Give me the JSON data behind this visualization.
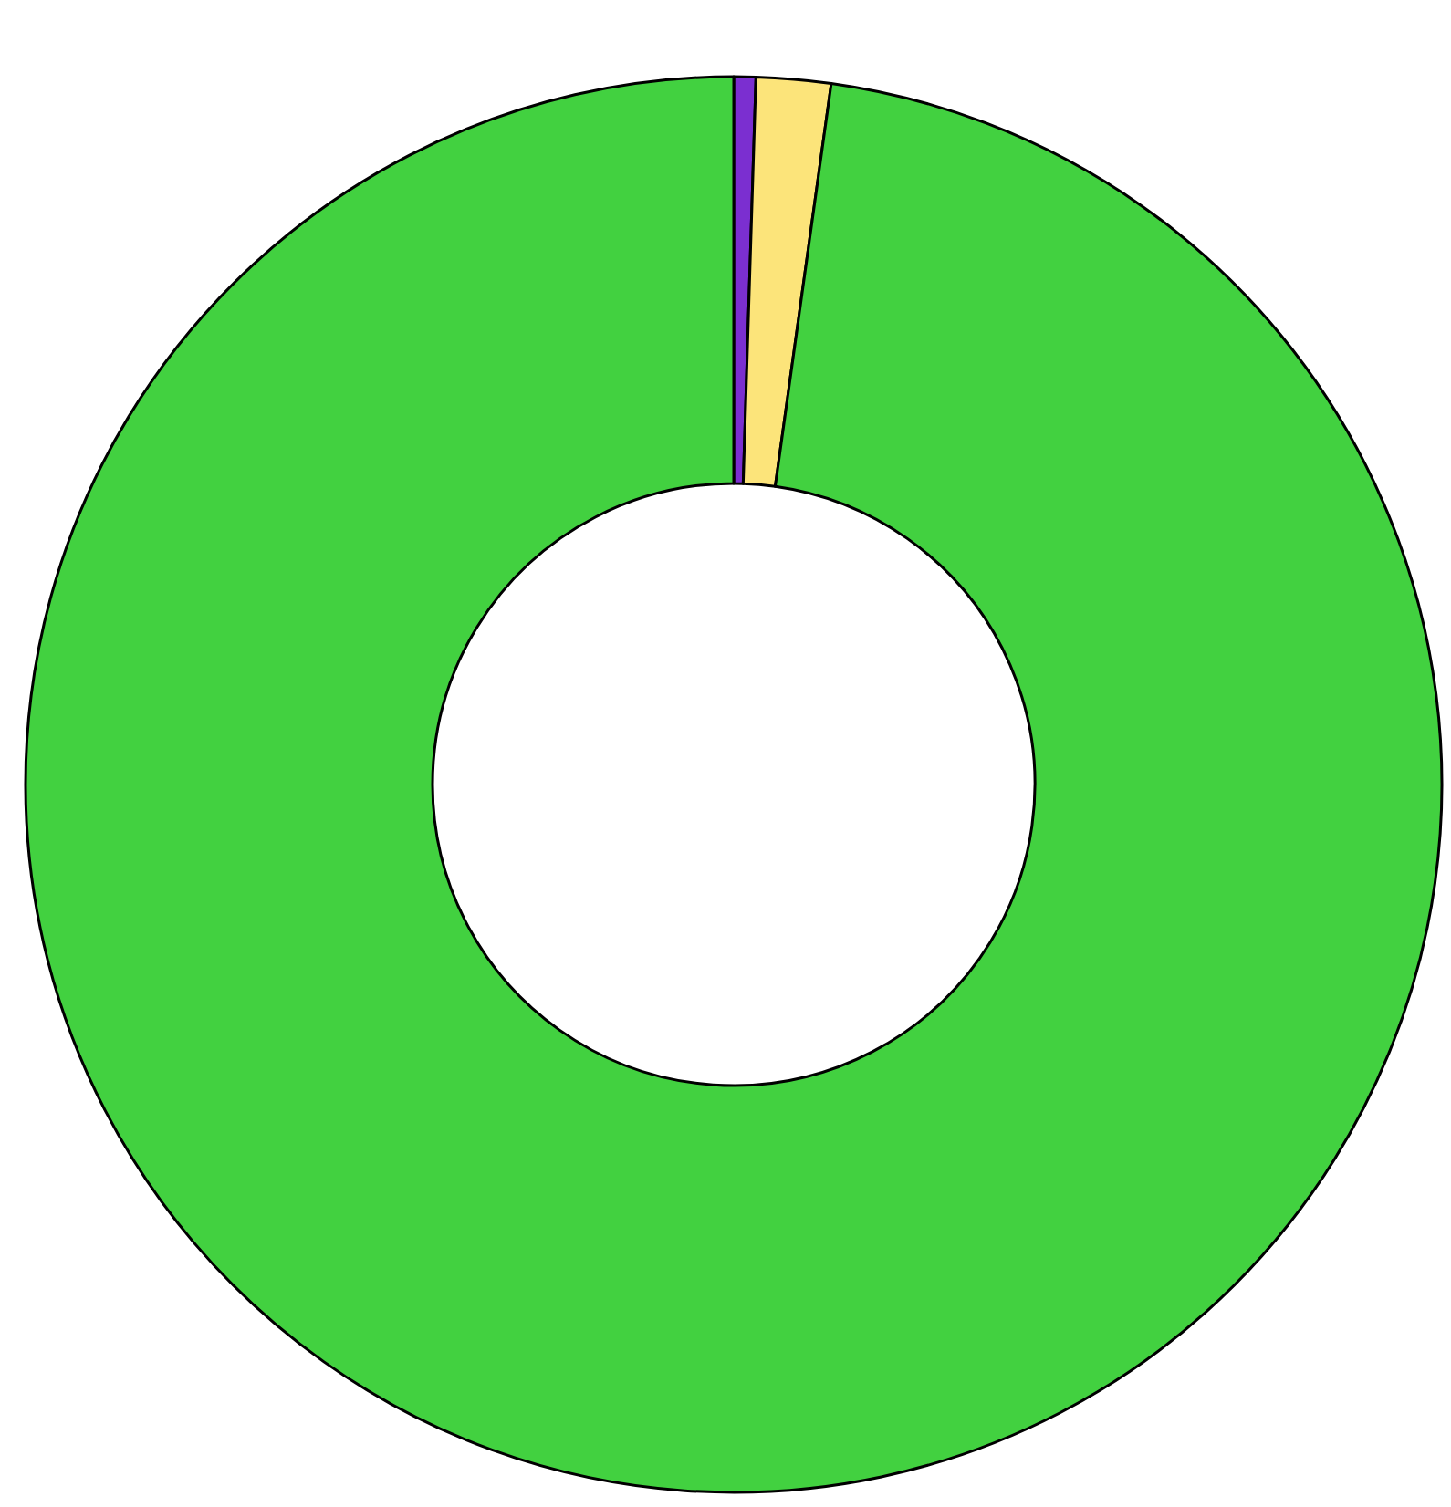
{
  "chart_data": {
    "type": "donut",
    "categories": [
      null,
      null,
      null
    ],
    "values": [
      0.5,
      1.7,
      97.8
    ],
    "colors": [
      "#7b2fd0",
      "#fce47a",
      "#42d140"
    ]
  }
}
